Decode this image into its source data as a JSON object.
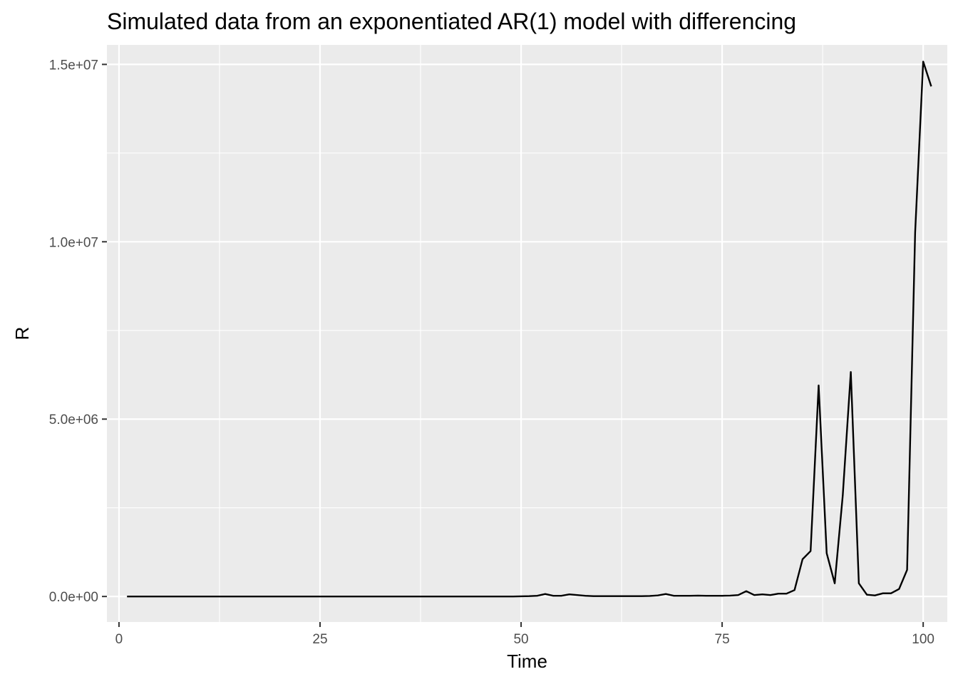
{
  "chart_data": {
    "type": "line",
    "title": "Simulated data from an exponentiated AR(1) model with differencing",
    "xlabel": "Time",
    "ylabel": "R",
    "xlim": [
      -1.5,
      103
    ],
    "ylim": [
      -720000,
      15550000
    ],
    "x_ticks": [
      0,
      25,
      50,
      75,
      100
    ],
    "x_tick_labels": [
      "0",
      "25",
      "50",
      "75",
      "100"
    ],
    "y_ticks": [
      0,
      5000000,
      10000000,
      15000000
    ],
    "y_tick_labels": [
      "0.0e+00",
      "5.0e+06",
      "1.0e+07",
      "1.5e+07"
    ],
    "grid": true,
    "colors": {
      "panel": "#ebebeb",
      "grid": "#ffffff",
      "line": "#000000",
      "tick": "#333333"
    },
    "series": [
      {
        "x": [
          1,
          2,
          3,
          4,
          5,
          6,
          7,
          8,
          9,
          10,
          11,
          12,
          13,
          14,
          15,
          16,
          17,
          18,
          19,
          20,
          21,
          22,
          23,
          24,
          25,
          26,
          27,
          28,
          29,
          30,
          31,
          32,
          33,
          34,
          35,
          36,
          37,
          38,
          39,
          40,
          41,
          42,
          43,
          44,
          45,
          46,
          47,
          48,
          49,
          50,
          51,
          52,
          53,
          54,
          55,
          56,
          57,
          58,
          59,
          60,
          61,
          62,
          63,
          64,
          65,
          66,
          67,
          68,
          69,
          70,
          71,
          72,
          73,
          74,
          75,
          76,
          77,
          78,
          79,
          80,
          81,
          82,
          83,
          84,
          85,
          86,
          87,
          88,
          89,
          90,
          91,
          92,
          93,
          94,
          95,
          96,
          97,
          98,
          99,
          100,
          101
        ],
        "values": [
          0,
          0,
          0,
          0,
          0,
          0,
          0,
          0,
          0,
          0,
          0,
          0,
          0,
          0,
          0,
          0,
          0,
          0,
          0,
          0,
          0,
          0,
          0,
          0,
          0,
          0,
          0,
          0,
          0,
          0,
          0,
          0,
          0,
          0,
          0,
          0,
          0,
          0,
          0,
          0,
          0,
          0,
          0,
          0,
          0,
          0,
          0,
          0,
          0,
          5000,
          10000,
          20000,
          70000,
          20000,
          20000,
          60000,
          40000,
          20000,
          10000,
          10000,
          10000,
          10000,
          10000,
          10000,
          10000,
          15000,
          30000,
          70000,
          20000,
          20000,
          20000,
          25000,
          20000,
          20000,
          20000,
          25000,
          40000,
          150000,
          40000,
          60000,
          40000,
          80000,
          80000,
          180000,
          1050000,
          1280000,
          5950000,
          1220000,
          370000,
          2850000,
          6330000,
          370000,
          50000,
          30000,
          90000,
          90000,
          210000,
          750000,
          10260000,
          15080000,
          14380000
        ]
      }
    ]
  }
}
